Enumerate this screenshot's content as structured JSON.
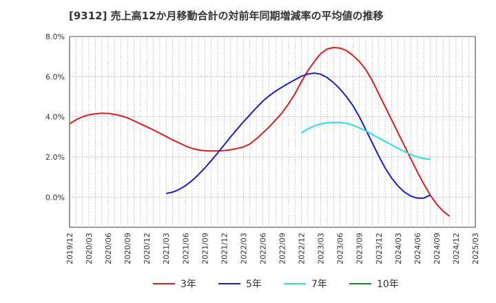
{
  "title": "[9312]  売上高12か月移動合計の対前年同期増減率の平均値の推移",
  "chart_data": {
    "type": "line",
    "title": "[9312]  売上高12か月移動合計の対前年同期増減率の平均値の推移",
    "xlabel": "",
    "ylabel": "",
    "ylim": [
      -1.5,
      8.0
    ],
    "yticks": [
      0,
      2,
      4,
      6,
      8
    ],
    "ytick_labels": [
      "0.0%",
      "2.0%",
      "4.0%",
      "6.0%",
      "8.0%"
    ],
    "x_ticks": [
      "2019/12",
      "2020/03",
      "2020/06",
      "2020/09",
      "2020/12",
      "2021/03",
      "2021/06",
      "2021/09",
      "2021/12",
      "2022/03",
      "2022/06",
      "2022/09",
      "2022/12",
      "2023/03",
      "2023/06",
      "2023/09",
      "2023/12",
      "2024/03",
      "2024/06",
      "2024/09",
      "2024/12",
      "2025/03"
    ],
    "grid": true,
    "legend_position": "bottom",
    "series": [
      {
        "name": "3年",
        "color": "#dd1a1a",
        "start": "2019/12",
        "values": [
          3.65,
          3.85,
          4.0,
          4.1,
          4.15,
          4.18,
          4.17,
          4.12,
          4.05,
          3.95,
          3.8,
          3.65,
          3.5,
          3.35,
          3.18,
          3.02,
          2.85,
          2.7,
          2.55,
          2.43,
          2.35,
          2.31,
          2.3,
          2.3,
          2.32,
          2.36,
          2.42,
          2.5,
          2.65,
          2.9,
          3.2,
          3.5,
          3.85,
          4.2,
          4.65,
          5.15,
          5.75,
          6.3,
          6.75,
          7.15,
          7.38,
          7.45,
          7.42,
          7.3,
          7.05,
          6.75,
          6.35,
          5.8,
          5.15,
          4.5,
          3.85,
          3.2,
          2.55,
          1.9,
          1.25,
          0.65,
          0.1,
          -0.35,
          -0.7,
          -0.95
        ]
      },
      {
        "name": "5年",
        "color": "#1a1ad0",
        "start": "2021/03",
        "values": [
          0.18,
          0.25,
          0.38,
          0.57,
          0.82,
          1.12,
          1.45,
          1.82,
          2.2,
          2.6,
          3.0,
          3.38,
          3.75,
          4.1,
          4.45,
          4.78,
          5.05,
          5.28,
          5.48,
          5.67,
          5.85,
          6.02,
          6.13,
          6.18,
          6.12,
          5.95,
          5.7,
          5.38,
          5.0,
          4.55,
          4.0,
          3.35,
          2.7,
          2.05,
          1.45,
          0.95,
          0.55,
          0.25,
          0.05,
          -0.05,
          -0.05,
          0.1
        ]
      },
      {
        "name": "7年",
        "color": "#22e0e8",
        "start": "2022/12",
        "values": [
          3.2,
          3.4,
          3.55,
          3.65,
          3.7,
          3.72,
          3.72,
          3.68,
          3.58,
          3.45,
          3.3,
          3.12,
          2.95,
          2.77,
          2.6,
          2.43,
          2.27,
          2.12,
          2.0,
          1.92,
          1.88
        ]
      },
      {
        "name": "10年",
        "color": "#1a8a1a",
        "start": "2025/03",
        "values": []
      }
    ]
  },
  "legend": [
    {
      "label": "3年",
      "color": "#dd1a1a"
    },
    {
      "label": "5年",
      "color": "#1a1ad0"
    },
    {
      "label": "7年",
      "color": "#22e0e8"
    },
    {
      "label": "10年",
      "color": "#1a8a1a"
    }
  ]
}
